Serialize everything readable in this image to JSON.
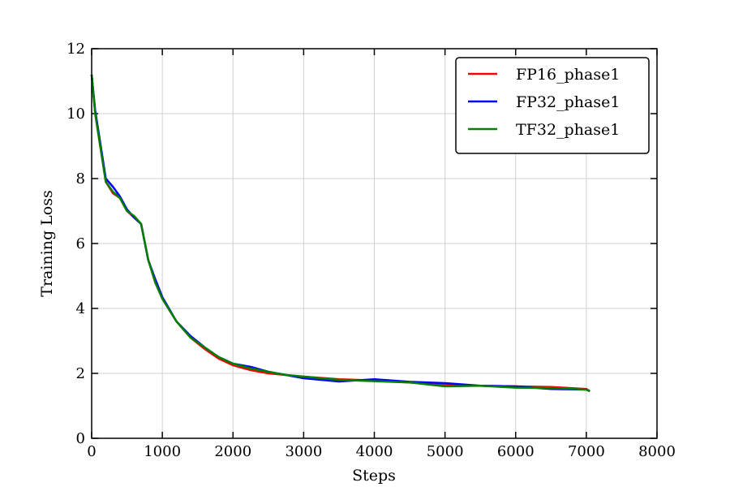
{
  "chart_data": {
    "type": "line",
    "xlabel": "Steps",
    "ylabel": "Training Loss",
    "x": [
      0,
      50,
      100,
      200,
      300,
      400,
      500,
      600,
      700,
      800,
      900,
      1000,
      1200,
      1400,
      1600,
      1800,
      2000,
      2250,
      2500,
      2750,
      3000,
      3500,
      4000,
      4500,
      5000,
      5500,
      6000,
      6500,
      7000,
      7050
    ],
    "series": [
      {
        "name": "FP16_phase1",
        "color": "#ff0000",
        "values": [
          11.2,
          10.0,
          9.3,
          7.9,
          7.55,
          7.4,
          7.0,
          6.8,
          6.6,
          5.5,
          4.8,
          4.3,
          3.6,
          3.1,
          2.75,
          2.45,
          2.25,
          2.1,
          2.0,
          1.95,
          1.9,
          1.82,
          1.78,
          1.72,
          1.65,
          1.62,
          1.6,
          1.58,
          1.52,
          1.45
        ]
      },
      {
        "name": "FP32_phase1",
        "color": "#0000ff",
        "values": [
          11.2,
          10.1,
          9.4,
          8.0,
          7.75,
          7.45,
          7.05,
          6.8,
          6.6,
          5.5,
          4.9,
          4.35,
          3.6,
          3.15,
          2.8,
          2.5,
          2.3,
          2.2,
          2.05,
          1.95,
          1.85,
          1.75,
          1.82,
          1.74,
          1.7,
          1.62,
          1.6,
          1.52,
          1.5,
          1.45
        ]
      },
      {
        "name": "TF32_phase1",
        "color": "#008000",
        "values": [
          11.2,
          10.0,
          9.3,
          7.9,
          7.6,
          7.4,
          7.0,
          6.85,
          6.6,
          5.5,
          4.8,
          4.3,
          3.6,
          3.1,
          2.8,
          2.5,
          2.3,
          2.15,
          2.05,
          1.95,
          1.9,
          1.8,
          1.76,
          1.72,
          1.6,
          1.62,
          1.56,
          1.55,
          1.5,
          1.45
        ]
      }
    ],
    "xlim": [
      0,
      8000
    ],
    "xticks": [
      0,
      1000,
      2000,
      3000,
      4000,
      5000,
      6000,
      7000,
      8000
    ],
    "ylim": [
      0,
      12
    ],
    "yticks": [
      0,
      2,
      4,
      6,
      8,
      10,
      12
    ],
    "grid": true,
    "legend": "upper-right"
  }
}
